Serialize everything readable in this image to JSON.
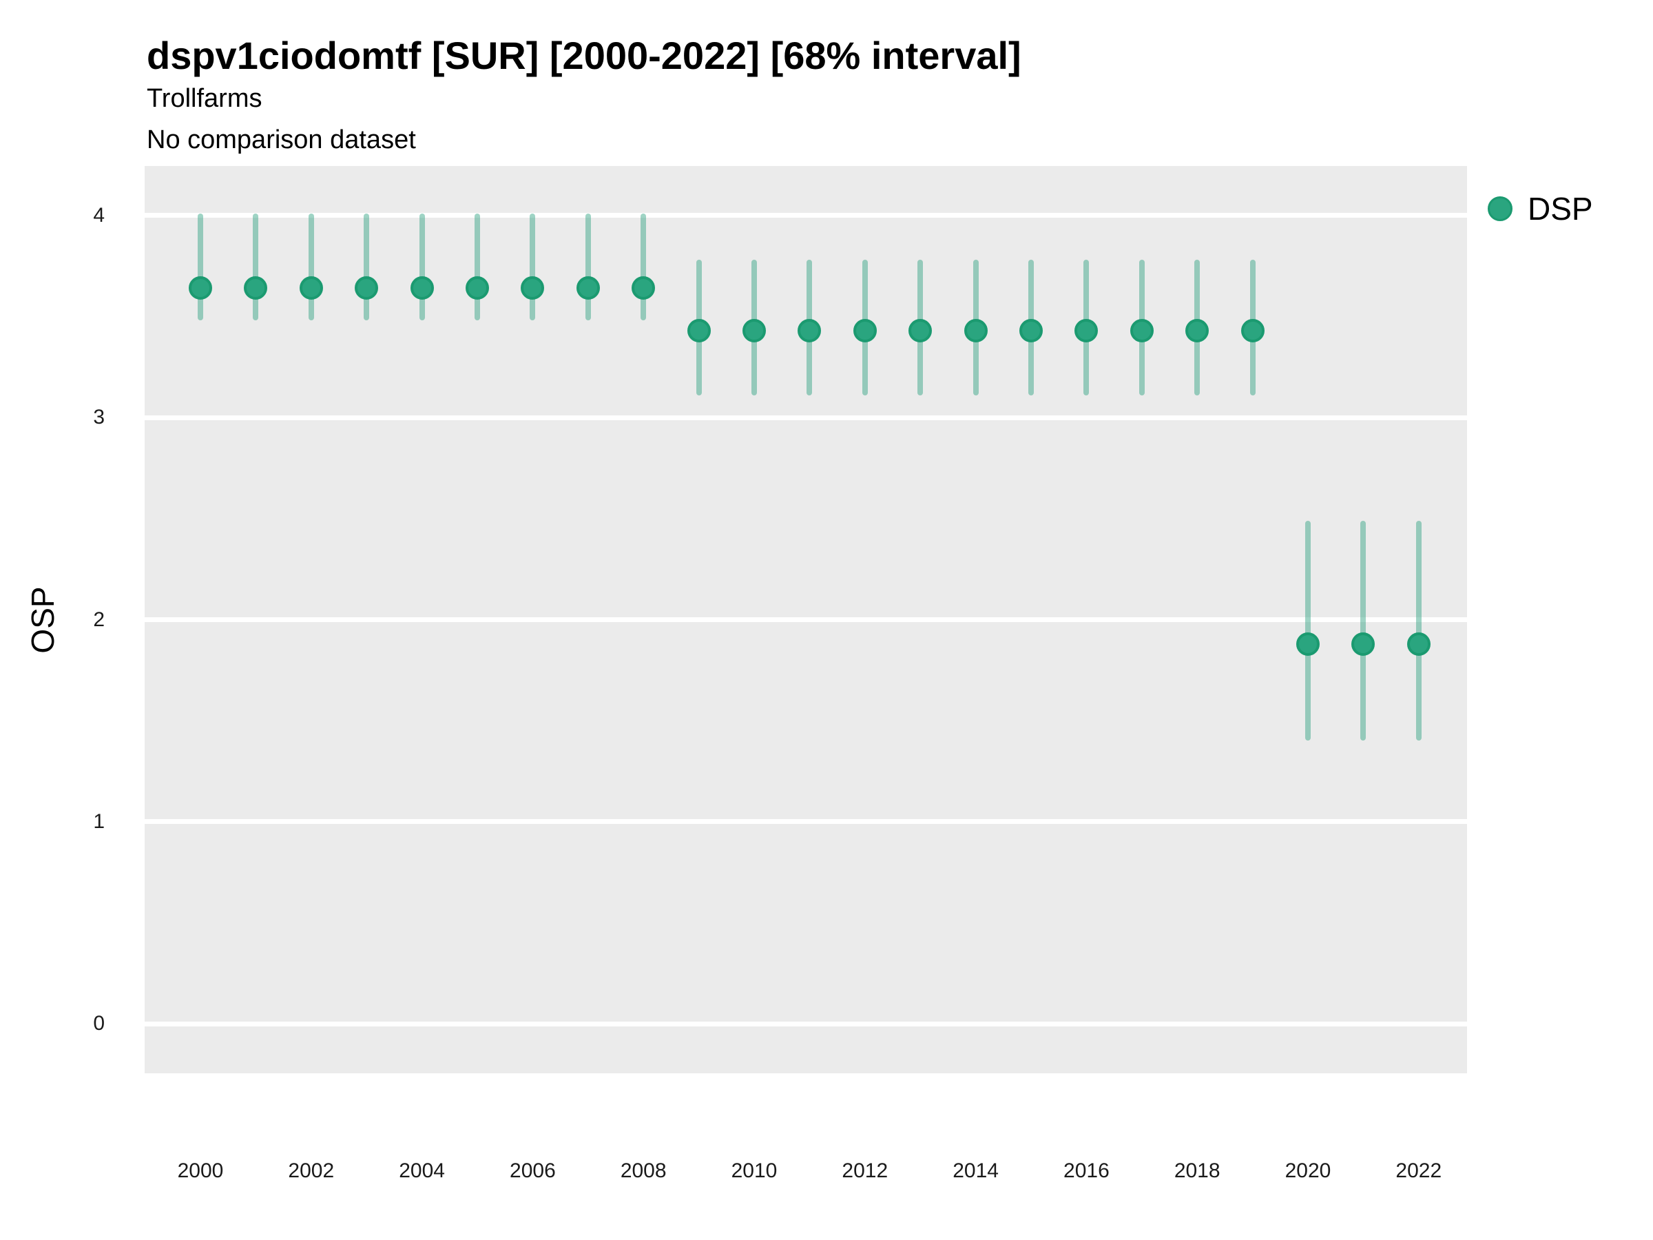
{
  "header": {
    "title": "dspv1ciodomtf [SUR] [2000-2022] [68% interval]",
    "subtitle": "Trollfarms",
    "comparison_note": "No comparison dataset"
  },
  "legend": {
    "position": "right",
    "items": [
      {
        "label": "DSP",
        "marker": "circle-icon",
        "color": "#2aa57f",
        "stroke": "#1b9a70"
      }
    ]
  },
  "colors": {
    "point_fill": "#2aa57f",
    "point_stroke": "#1b9a70",
    "interval_rgba": "rgba(42,160,126,0.45)",
    "panel_background": "#ebebeb",
    "gridline": "#ffffff",
    "text": "#000000"
  },
  "chart_data": {
    "type": "pointrange",
    "title": "dspv1ciodomtf [SUR] [2000-2022] [68% interval]",
    "subtitle": "Trollfarms",
    "note": "No comparison dataset",
    "xlabel": "",
    "ylabel": "OSP",
    "x": [
      2000,
      2001,
      2002,
      2003,
      2004,
      2005,
      2006,
      2007,
      2008,
      2009,
      2010,
      2011,
      2012,
      2013,
      2014,
      2015,
      2016,
      2017,
      2018,
      2019,
      2020,
      2021,
      2022
    ],
    "series": [
      {
        "name": "DSP",
        "values": [
          3.64,
          3.64,
          3.64,
          3.64,
          3.64,
          3.64,
          3.64,
          3.64,
          3.64,
          3.43,
          3.43,
          3.43,
          3.43,
          3.43,
          3.43,
          3.43,
          3.43,
          3.43,
          3.43,
          3.43,
          1.88,
          1.88,
          1.88
        ],
        "lower": [
          3.48,
          3.48,
          3.48,
          3.48,
          3.48,
          3.48,
          3.48,
          3.48,
          3.48,
          3.11,
          3.11,
          3.11,
          3.11,
          3.11,
          3.11,
          3.11,
          3.11,
          3.11,
          3.11,
          3.11,
          1.4,
          1.4,
          1.4
        ],
        "upper": [
          4.01,
          4.01,
          4.01,
          4.01,
          4.01,
          4.01,
          4.01,
          4.01,
          4.01,
          3.78,
          3.78,
          3.78,
          3.78,
          3.78,
          3.78,
          3.78,
          3.78,
          3.78,
          3.78,
          3.78,
          2.49,
          2.49,
          2.49
        ]
      }
    ],
    "interval_level": "68%",
    "ylim": [
      -0.245,
      4.245
    ],
    "yticks": [
      0,
      1,
      2,
      3,
      4
    ],
    "xticks": [
      2000,
      2002,
      2004,
      2006,
      2008,
      2010,
      2012,
      2014,
      2016,
      2018,
      2020,
      2022
    ],
    "grid": "major-horizontal-white",
    "legend_position": "right"
  }
}
